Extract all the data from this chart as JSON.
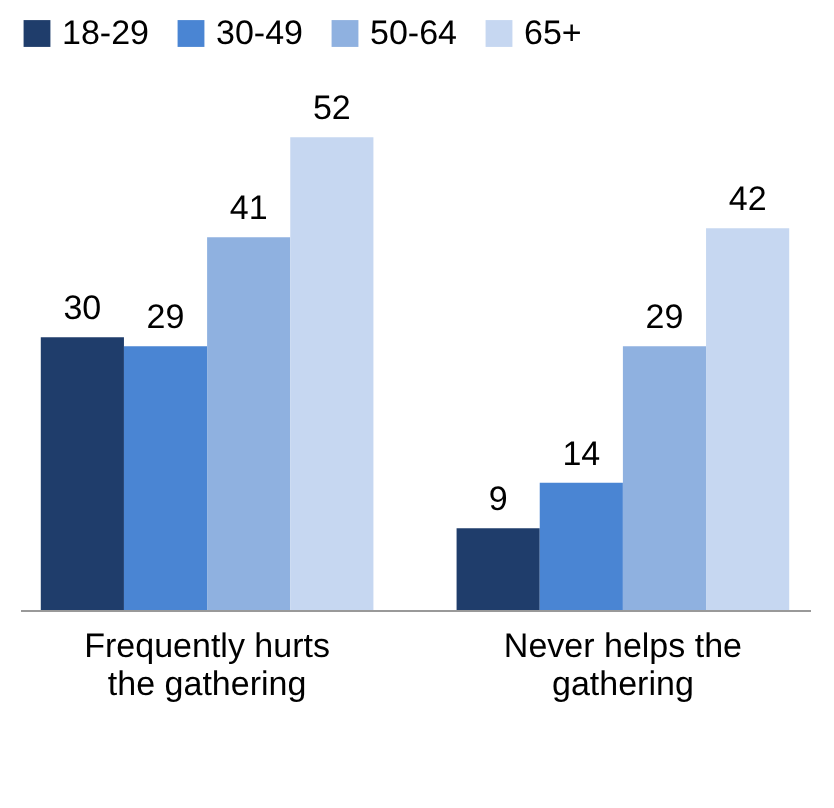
{
  "chart_data": {
    "type": "bar",
    "categories": [
      "Frequently hurts the gathering",
      "Never helps the gathering"
    ],
    "series": [
      {
        "name": "18-29",
        "color": "#1f3d6b",
        "values": [
          30,
          9
        ]
      },
      {
        "name": "30-49",
        "color": "#4a85d3",
        "values": [
          29,
          14
        ]
      },
      {
        "name": "50-64",
        "color": "#8fb1e0",
        "values": [
          41,
          29
        ]
      },
      {
        "name": "65+",
        "color": "#c6d7f1",
        "values": [
          52,
          42
        ]
      }
    ],
    "data_labels": true,
    "legend": "top",
    "grid": false
  }
}
